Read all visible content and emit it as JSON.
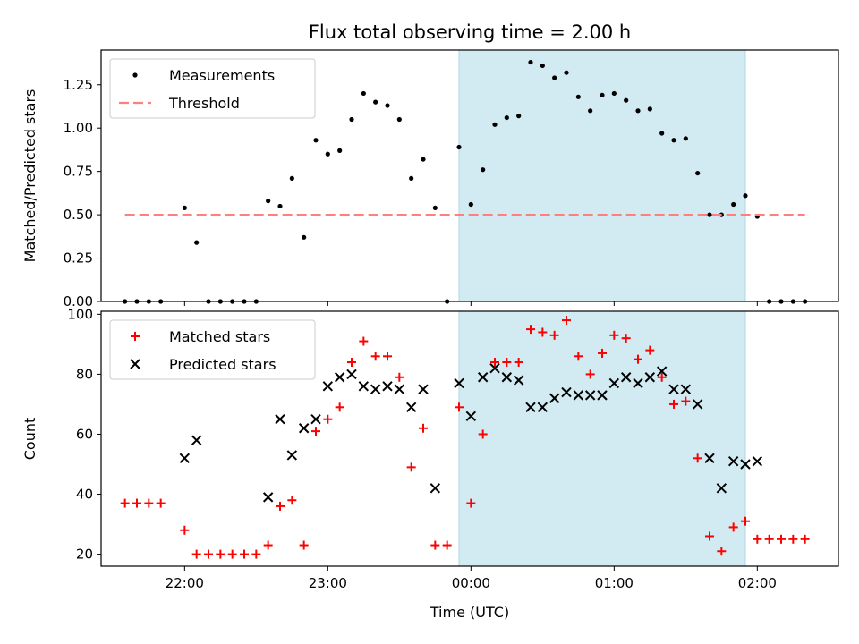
{
  "chart_data": [
    {
      "type": "scatter",
      "title": "Flux total observing time = 2.00 h",
      "xlabel": "",
      "ylabel": "Matched/Predicted stars",
      "xlim": [
        "21:25",
        "02:34"
      ],
      "ylim": [
        0,
        1.45
      ],
      "yticks": [
        "0.00",
        "0.25",
        "0.50",
        "0.75",
        "1.00",
        "1.25"
      ],
      "xticks": [
        "22:00",
        "23:00",
        "00:00",
        "01:00",
        "02:00"
      ],
      "shaded_span": {
        "start": "23:55",
        "end": "01:55",
        "color": "#add8e6"
      },
      "legend": {
        "position": "upper-left",
        "entries": [
          "Measurements",
          "Threshold"
        ]
      },
      "series": [
        {
          "name": "Measurements",
          "style": "dot",
          "color": "#000000",
          "points": [
            [
              "21:35",
              0.0
            ],
            [
              "21:40",
              0.0
            ],
            [
              "21:45",
              0.0
            ],
            [
              "21:50",
              0.0
            ],
            [
              "22:00",
              0.54
            ],
            [
              "22:05",
              0.34
            ],
            [
              "22:10",
              0.0
            ],
            [
              "22:15",
              0.0
            ],
            [
              "22:20",
              0.0
            ],
            [
              "22:25",
              0.0
            ],
            [
              "22:30",
              0.0
            ],
            [
              "22:35",
              0.58
            ],
            [
              "22:40",
              0.55
            ],
            [
              "22:45",
              0.71
            ],
            [
              "22:50",
              0.37
            ],
            [
              "22:55",
              0.93
            ],
            [
              "23:00",
              0.85
            ],
            [
              "23:05",
              0.87
            ],
            [
              "23:10",
              1.05
            ],
            [
              "23:15",
              1.2
            ],
            [
              "23:20",
              1.15
            ],
            [
              "23:25",
              1.13
            ],
            [
              "23:30",
              1.05
            ],
            [
              "23:35",
              0.71
            ],
            [
              "23:40",
              0.82
            ],
            [
              "23:45",
              0.54
            ],
            [
              "23:50",
              0.0
            ],
            [
              "23:55",
              0.89
            ],
            [
              "00:00",
              0.56
            ],
            [
              "00:05",
              0.76
            ],
            [
              "00:10",
              1.02
            ],
            [
              "00:15",
              1.06
            ],
            [
              "00:20",
              1.07
            ],
            [
              "00:25",
              1.38
            ],
            [
              "00:30",
              1.36
            ],
            [
              "00:35",
              1.29
            ],
            [
              "00:40",
              1.32
            ],
            [
              "00:45",
              1.18
            ],
            [
              "00:50",
              1.1
            ],
            [
              "00:55",
              1.19
            ],
            [
              "01:00",
              1.2
            ],
            [
              "01:05",
              1.16
            ],
            [
              "01:10",
              1.1
            ],
            [
              "01:15",
              1.11
            ],
            [
              "01:20",
              0.97
            ],
            [
              "01:25",
              0.93
            ],
            [
              "01:30",
              0.94
            ],
            [
              "01:35",
              0.74
            ],
            [
              "01:40",
              0.5
            ],
            [
              "01:45",
              0.5
            ],
            [
              "01:50",
              0.56
            ],
            [
              "01:55",
              0.61
            ],
            [
              "02:00",
              0.49
            ],
            [
              "02:05",
              0.0
            ],
            [
              "02:10",
              0.0
            ],
            [
              "02:15",
              0.0
            ],
            [
              "02:20",
              0.0
            ]
          ]
        },
        {
          "name": "Threshold",
          "style": "dashed-line",
          "color": "#ff7f7f",
          "points": [
            [
              "21:35",
              0.5
            ],
            [
              "02:20",
              0.5
            ]
          ]
        }
      ]
    },
    {
      "type": "scatter",
      "title": "",
      "xlabel": "Time (UTC)",
      "ylabel": "Count",
      "xlim": [
        "21:25",
        "02:34"
      ],
      "ylim": [
        16,
        101
      ],
      "yticks": [
        "20",
        "40",
        "60",
        "80",
        "100"
      ],
      "xticks": [
        "22:00",
        "23:00",
        "00:00",
        "01:00",
        "02:00"
      ],
      "shaded_span": {
        "start": "23:55",
        "end": "01:55",
        "color": "#add8e6"
      },
      "legend": {
        "position": "upper-left",
        "entries": [
          "Matched stars",
          "Predicted stars"
        ]
      },
      "series": [
        {
          "name": "Matched stars",
          "style": "plus",
          "color": "#ff0000",
          "points": [
            [
              "21:35",
              37
            ],
            [
              "21:40",
              37
            ],
            [
              "21:45",
              37
            ],
            [
              "21:50",
              37
            ],
            [
              "22:00",
              28
            ],
            [
              "22:05",
              20
            ],
            [
              "22:10",
              20
            ],
            [
              "22:15",
              20
            ],
            [
              "22:20",
              20
            ],
            [
              "22:25",
              20
            ],
            [
              "22:30",
              20
            ],
            [
              "22:35",
              23
            ],
            [
              "22:40",
              36
            ],
            [
              "22:45",
              38
            ],
            [
              "22:50",
              23
            ],
            [
              "22:55",
              61
            ],
            [
              "23:00",
              65
            ],
            [
              "23:05",
              69
            ],
            [
              "23:10",
              84
            ],
            [
              "23:15",
              91
            ],
            [
              "23:20",
              86
            ],
            [
              "23:25",
              86
            ],
            [
              "23:30",
              79
            ],
            [
              "23:35",
              49
            ],
            [
              "23:40",
              62
            ],
            [
              "23:45",
              23
            ],
            [
              "23:50",
              23
            ],
            [
              "23:55",
              69
            ],
            [
              "00:00",
              37
            ],
            [
              "00:05",
              60
            ],
            [
              "00:10",
              84
            ],
            [
              "00:15",
              84
            ],
            [
              "00:20",
              84
            ],
            [
              "00:25",
              95
            ],
            [
              "00:30",
              94
            ],
            [
              "00:35",
              93
            ],
            [
              "00:40",
              98
            ],
            [
              "00:45",
              86
            ],
            [
              "00:50",
              80
            ],
            [
              "00:55",
              87
            ],
            [
              "01:00",
              93
            ],
            [
              "01:05",
              92
            ],
            [
              "01:10",
              85
            ],
            [
              "01:15",
              88
            ],
            [
              "01:20",
              79
            ],
            [
              "01:25",
              70
            ],
            [
              "01:30",
              71
            ],
            [
              "01:35",
              52
            ],
            [
              "01:40",
              26
            ],
            [
              "01:45",
              21
            ],
            [
              "01:50",
              29
            ],
            [
              "01:55",
              31
            ],
            [
              "02:00",
              25
            ],
            [
              "02:05",
              25
            ],
            [
              "02:10",
              25
            ],
            [
              "02:15",
              25
            ],
            [
              "02:20",
              25
            ]
          ]
        },
        {
          "name": "Predicted stars",
          "style": "x",
          "color": "#000000",
          "points": [
            [
              "22:00",
              52
            ],
            [
              "22:05",
              58
            ],
            [
              "22:35",
              39
            ],
            [
              "22:40",
              65
            ],
            [
              "22:45",
              53
            ],
            [
              "22:50",
              62
            ],
            [
              "22:55",
              65
            ],
            [
              "23:00",
              76
            ],
            [
              "23:05",
              79
            ],
            [
              "23:10",
              80
            ],
            [
              "23:15",
              76
            ],
            [
              "23:20",
              75
            ],
            [
              "23:25",
              76
            ],
            [
              "23:30",
              75
            ],
            [
              "23:35",
              69
            ],
            [
              "23:40",
              75
            ],
            [
              "23:45",
              42
            ],
            [
              "23:55",
              77
            ],
            [
              "00:00",
              66
            ],
            [
              "00:05",
              79
            ],
            [
              "00:10",
              82
            ],
            [
              "00:15",
              79
            ],
            [
              "00:20",
              78
            ],
            [
              "00:25",
              69
            ],
            [
              "00:30",
              69
            ],
            [
              "00:35",
              72
            ],
            [
              "00:40",
              74
            ],
            [
              "00:45",
              73
            ],
            [
              "00:50",
              73
            ],
            [
              "00:55",
              73
            ],
            [
              "01:00",
              77
            ],
            [
              "01:05",
              79
            ],
            [
              "01:10",
              77
            ],
            [
              "01:15",
              79
            ],
            [
              "01:20",
              81
            ],
            [
              "01:25",
              75
            ],
            [
              "01:30",
              75
            ],
            [
              "01:35",
              70
            ],
            [
              "01:40",
              52
            ],
            [
              "01:45",
              42
            ],
            [
              "01:50",
              51
            ],
            [
              "01:55",
              50
            ],
            [
              "02:00",
              51
            ]
          ]
        }
      ]
    }
  ]
}
